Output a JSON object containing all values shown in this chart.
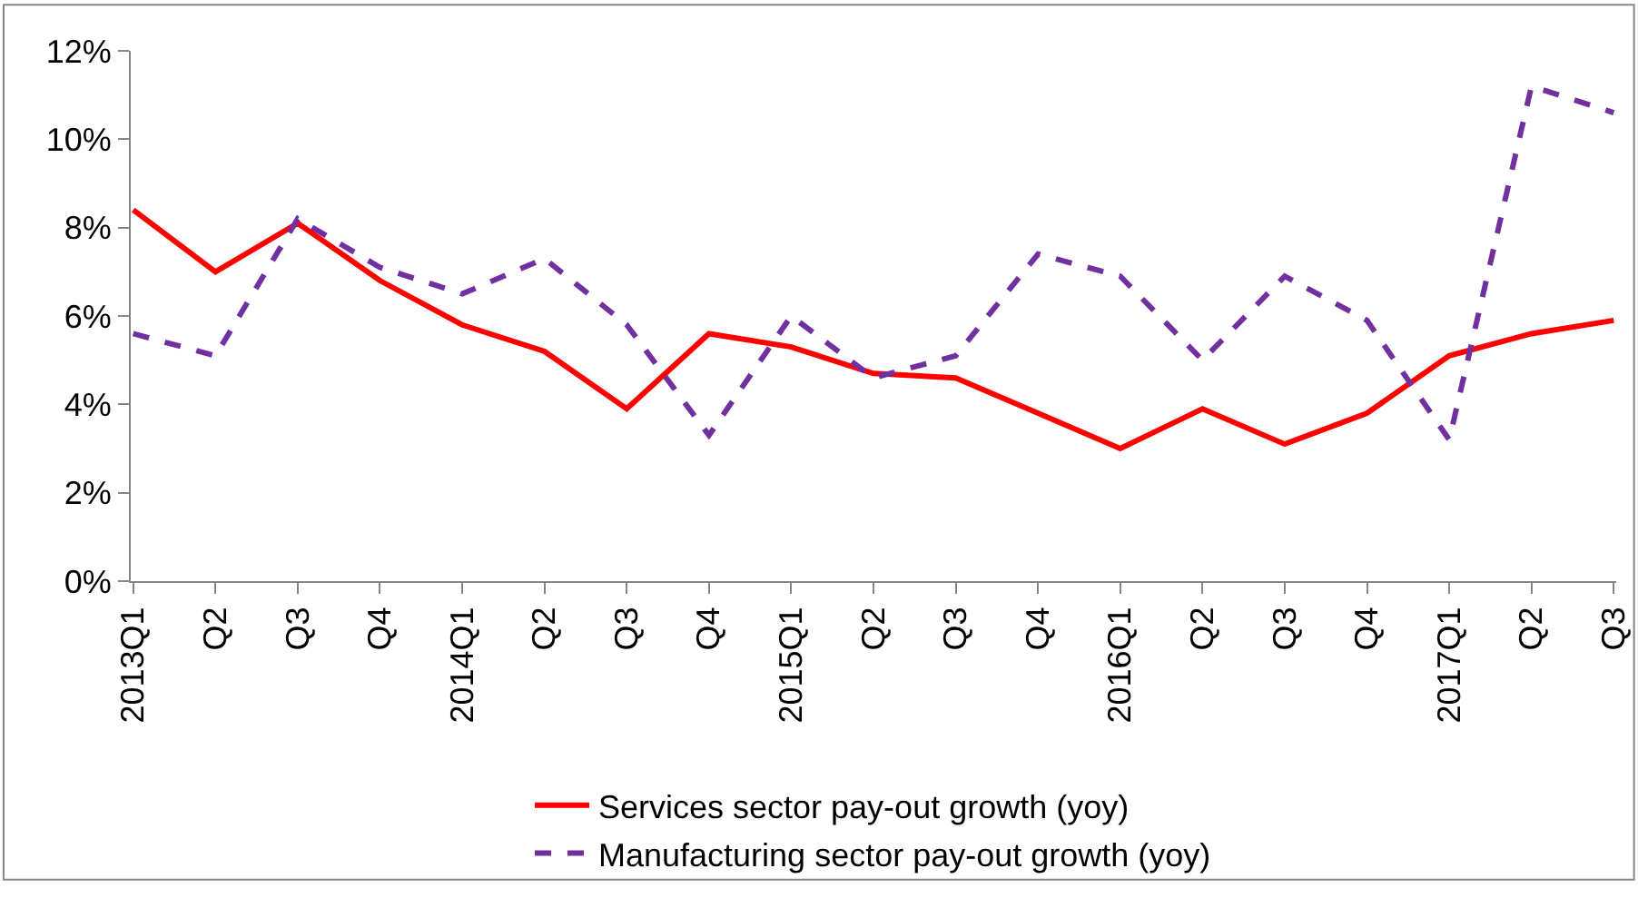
{
  "chart_data": {
    "type": "line",
    "categories": [
      "2013Q1",
      "Q2",
      "Q3",
      "Q4",
      "2014Q1",
      "Q2",
      "Q3",
      "Q4",
      "2015Q1",
      "Q2",
      "Q3",
      "Q4",
      "2016Q1",
      "Q2",
      "Q3",
      "Q4",
      "2017Q1",
      "Q2",
      "Q3"
    ],
    "series": [
      {
        "name": "Services sector pay-out growth (yoy)",
        "color": "#ff0000",
        "line_style": "solid",
        "values": [
          8.4,
          7.0,
          8.1,
          6.8,
          5.8,
          5.2,
          3.9,
          5.6,
          5.3,
          4.7,
          4.6,
          3.8,
          3.0,
          3.9,
          3.1,
          3.8,
          5.1,
          5.6,
          5.9
        ]
      },
      {
        "name": "Manufacturing sector pay-out growth (yoy)",
        "color": "#7030a0",
        "line_style": "dashed",
        "values": [
          5.6,
          5.1,
          8.2,
          7.1,
          6.5,
          7.3,
          5.8,
          3.3,
          6.0,
          4.6,
          5.1,
          7.4,
          6.9,
          5.0,
          6.9,
          5.9,
          3.2,
          11.2,
          10.6
        ]
      }
    ],
    "ylim": [
      0,
      12
    ],
    "yticks": [
      {
        "value": 0,
        "label": "0%"
      },
      {
        "value": 2,
        "label": "2%"
      },
      {
        "value": 4,
        "label": "4%"
      },
      {
        "value": 6,
        "label": "6%"
      },
      {
        "value": 8,
        "label": "8%"
      },
      {
        "value": 10,
        "label": "10%"
      },
      {
        "value": 12,
        "label": "12%"
      }
    ],
    "grid": false,
    "legend": "bottom",
    "marker": "none"
  }
}
